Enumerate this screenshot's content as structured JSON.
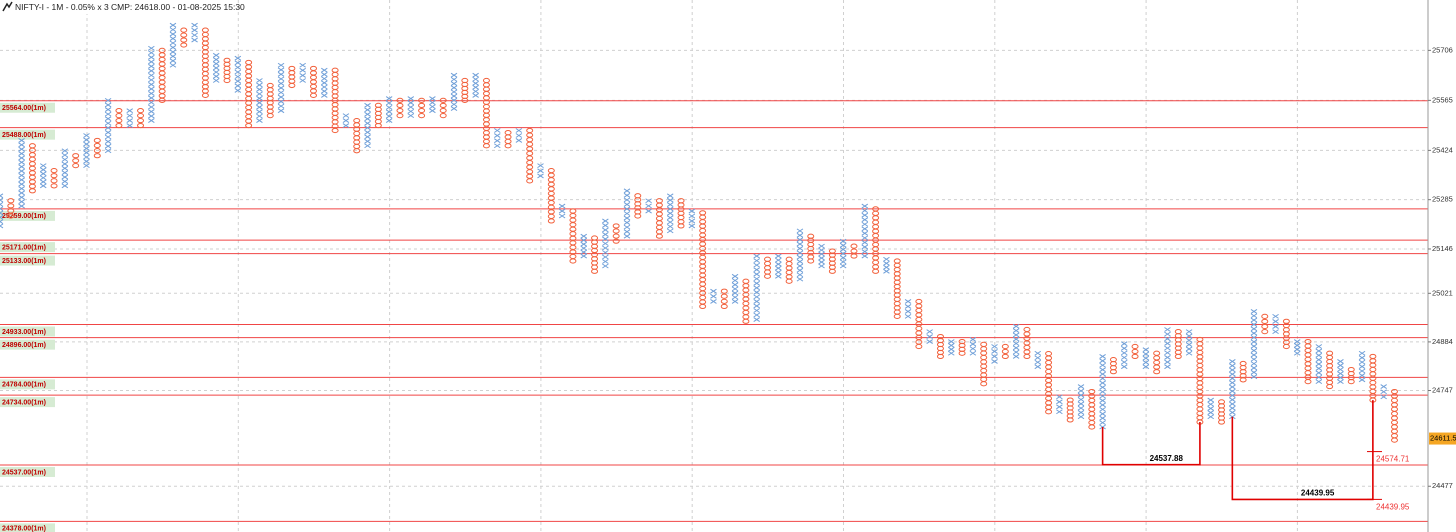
{
  "chart_data": {
    "type": "pnf",
    "title": "NIFTY-I - 1M - 0.05% x 3 CMP: 24618.00 - 01-08-2025 15:30",
    "ylim": [
      24348,
      25848
    ],
    "yticks": [
      25706,
      25565,
      25424,
      25285,
      25146,
      25021,
      24884,
      24747,
      24477
    ],
    "current_price": 24611.5,
    "x_color": "#6f9fd8",
    "o_color": "#f2613c",
    "level_color": "#f04545",
    "levels": [
      {
        "value": 25564,
        "label": "25564.00(1m)"
      },
      {
        "value": 25488,
        "label": "25488.00(1m)"
      },
      {
        "value": 25259,
        "label": "25259.00(1m)"
      },
      {
        "value": 25171,
        "label": "25171.00(1m)"
      },
      {
        "value": 25133,
        "label": "25133.00(1m)"
      },
      {
        "value": 24933,
        "label": "24933.00(1m)"
      },
      {
        "value": 24896,
        "label": "24896.00(1m)"
      },
      {
        "value": 24784,
        "label": "24784.00(1m)"
      },
      {
        "value": 24734,
        "label": "24734.00(1m)"
      },
      {
        "value": 24537,
        "label": "24537.00(1m)"
      },
      {
        "value": 24378,
        "label": "24378.00(1m)"
      }
    ],
    "brackets": [
      24537.88,
      24439.95
    ],
    "side_labels": [
      24574.71,
      24439.95
    ],
    "columns": [
      {
        "box": "X",
        "high": 25296,
        "low": 25211
      },
      {
        "box": "O",
        "high": 25282,
        "low": 25239
      },
      {
        "box": "X",
        "high": 25452,
        "low": 25267
      },
      {
        "box": "O",
        "high": 25437,
        "low": 25310
      },
      {
        "box": "X",
        "high": 25381,
        "low": 25324
      },
      {
        "box": "O",
        "high": 25367,
        "low": 25324
      },
      {
        "box": "X",
        "high": 25423,
        "low": 25324
      },
      {
        "box": "O",
        "high": 25409,
        "low": 25381
      },
      {
        "box": "X",
        "high": 25466,
        "low": 25381
      },
      {
        "box": "O",
        "high": 25452,
        "low": 25409
      },
      {
        "box": "X",
        "high": 25565,
        "low": 25423
      },
      {
        "box": "O",
        "high": 25536,
        "low": 25494
      },
      {
        "box": "X",
        "high": 25536,
        "low": 25494
      },
      {
        "box": "O",
        "high": 25536,
        "low": 25494
      },
      {
        "box": "X",
        "high": 25712,
        "low": 25508
      },
      {
        "box": "O",
        "high": 25706,
        "low": 25565
      },
      {
        "box": "X",
        "high": 25777,
        "low": 25664
      },
      {
        "box": "O",
        "high": 25763,
        "low": 25721
      },
      {
        "box": "X",
        "high": 25777,
        "low": 25735
      },
      {
        "box": "O",
        "high": 25763,
        "low": 25579
      },
      {
        "box": "X",
        "high": 25692,
        "low": 25621
      },
      {
        "box": "O",
        "high": 25678,
        "low": 25621
      },
      {
        "box": "X",
        "high": 25684,
        "low": 25593
      },
      {
        "box": "O",
        "high": 25672,
        "low": 25494
      },
      {
        "box": "X",
        "high": 25621,
        "low": 25508
      },
      {
        "box": "O",
        "high": 25607,
        "low": 25522
      },
      {
        "box": "X",
        "high": 25664,
        "low": 25536
      },
      {
        "box": "O",
        "high": 25655,
        "low": 25607
      },
      {
        "box": "X",
        "high": 25664,
        "low": 25621
      },
      {
        "box": "O",
        "high": 25655,
        "low": 25579
      },
      {
        "box": "X",
        "high": 25650,
        "low": 25579
      },
      {
        "box": "O",
        "high": 25650,
        "low": 25480
      },
      {
        "box": "X",
        "high": 25522,
        "low": 25494
      },
      {
        "box": "O",
        "high": 25508,
        "low": 25423
      },
      {
        "box": "X",
        "high": 25551,
        "low": 25437
      },
      {
        "box": "O",
        "high": 25551,
        "low": 25494
      },
      {
        "box": "X",
        "high": 25570,
        "low": 25508
      },
      {
        "box": "O",
        "high": 25565,
        "low": 25522
      },
      {
        "box": "X",
        "high": 25570,
        "low": 25522
      },
      {
        "box": "O",
        "high": 25565,
        "low": 25522
      },
      {
        "box": "X",
        "high": 25570,
        "low": 25536
      },
      {
        "box": "O",
        "high": 25565,
        "low": 25522
      },
      {
        "box": "X",
        "high": 25636,
        "low": 25542
      },
      {
        "box": "O",
        "high": 25621,
        "low": 25565
      },
      {
        "box": "X",
        "high": 25636,
        "low": 25579
      },
      {
        "box": "O",
        "high": 25621,
        "low": 25437
      },
      {
        "box": "X",
        "high": 25480,
        "low": 25437
      },
      {
        "box": "O",
        "high": 25474,
        "low": 25437
      },
      {
        "box": "X",
        "high": 25480,
        "low": 25452
      },
      {
        "box": "O",
        "high": 25480,
        "low": 25338
      },
      {
        "box": "X",
        "high": 25381,
        "low": 25352
      },
      {
        "box": "O",
        "high": 25367,
        "low": 25225
      },
      {
        "box": "X",
        "high": 25267,
        "low": 25239
      },
      {
        "box": "O",
        "high": 25253,
        "low": 25112
      },
      {
        "box": "X",
        "high": 25182,
        "low": 25126
      },
      {
        "box": "O",
        "high": 25177,
        "low": 25083
      },
      {
        "box": "X",
        "high": 25225,
        "low": 25098
      },
      {
        "box": "O",
        "high": 25211,
        "low": 25168
      },
      {
        "box": "X",
        "high": 25310,
        "low": 25182
      },
      {
        "box": "O",
        "high": 25296,
        "low": 25239
      },
      {
        "box": "X",
        "high": 25282,
        "low": 25253
      },
      {
        "box": "O",
        "high": 25282,
        "low": 25182
      },
      {
        "box": "X",
        "high": 25296,
        "low": 25197
      },
      {
        "box": "O",
        "high": 25282,
        "low": 25211
      },
      {
        "box": "X",
        "high": 25253,
        "low": 25211
      },
      {
        "box": "O",
        "high": 25248,
        "low": 24984
      },
      {
        "box": "X",
        "high": 25027,
        "low": 24998
      },
      {
        "box": "O",
        "high": 25027,
        "low": 24984
      },
      {
        "box": "X",
        "high": 25069,
        "low": 24998
      },
      {
        "box": "O",
        "high": 25055,
        "low": 24942
      },
      {
        "box": "X",
        "high": 25126,
        "low": 24947
      },
      {
        "box": "O",
        "high": 25117,
        "low": 25069
      },
      {
        "box": "X",
        "high": 25126,
        "low": 25069
      },
      {
        "box": "O",
        "high": 25117,
        "low": 25055
      },
      {
        "box": "X",
        "high": 25197,
        "low": 25061
      },
      {
        "box": "O",
        "high": 25182,
        "low": 25112
      },
      {
        "box": "X",
        "high": 25154,
        "low": 25098
      },
      {
        "box": "O",
        "high": 25140,
        "low": 25083
      },
      {
        "box": "X",
        "high": 25168,
        "low": 25098
      },
      {
        "box": "O",
        "high": 25154,
        "low": 25126
      },
      {
        "box": "X",
        "high": 25267,
        "low": 25126
      },
      {
        "box": "O",
        "high": 25259,
        "low": 25083
      },
      {
        "box": "X",
        "high": 25117,
        "low": 25083
      },
      {
        "box": "O",
        "high": 25112,
        "low": 24956
      },
      {
        "box": "X",
        "high": 24998,
        "low": 24956
      },
      {
        "box": "O",
        "high": 24998,
        "low": 24871
      },
      {
        "box": "X",
        "high": 24913,
        "low": 24885
      },
      {
        "box": "O",
        "high": 24899,
        "low": 24843
      },
      {
        "box": "X",
        "high": 24885,
        "low": 24852
      },
      {
        "box": "O",
        "high": 24885,
        "low": 24852
      },
      {
        "box": "X",
        "high": 24891,
        "low": 24852
      },
      {
        "box": "O",
        "high": 24877,
        "low": 24766
      },
      {
        "box": "X",
        "high": 24871,
        "low": 24829
      },
      {
        "box": "O",
        "high": 24871,
        "low": 24843
      },
      {
        "box": "X",
        "high": 24928,
        "low": 24843
      },
      {
        "box": "O",
        "high": 24919,
        "low": 24843
      },
      {
        "box": "X",
        "high": 24852,
        "low": 24814
      },
      {
        "box": "O",
        "high": 24851,
        "low": 24687
      },
      {
        "box": "X",
        "high": 24729,
        "low": 24687
      },
      {
        "box": "O",
        "high": 24720,
        "low": 24664
      },
      {
        "box": "X",
        "high": 24758,
        "low": 24673
      },
      {
        "box": "O",
        "high": 24744,
        "low": 24644
      },
      {
        "box": "X",
        "high": 24843,
        "low": 24644
      },
      {
        "box": "O",
        "high": 24834,
        "low": 24800
      },
      {
        "box": "X",
        "high": 24879,
        "low": 24814
      },
      {
        "box": "O",
        "high": 24871,
        "low": 24843
      },
      {
        "box": "X",
        "high": 24862,
        "low": 24814
      },
      {
        "box": "O",
        "high": 24852,
        "low": 24800
      },
      {
        "box": "X",
        "high": 24919,
        "low": 24814
      },
      {
        "box": "O",
        "high": 24913,
        "low": 24843
      },
      {
        "box": "X",
        "high": 24913,
        "low": 24852
      },
      {
        "box": "O",
        "high": 24891,
        "low": 24658
      },
      {
        "box": "X",
        "high": 24720,
        "low": 24673
      },
      {
        "box": "O",
        "high": 24715,
        "low": 24658
      },
      {
        "box": "X",
        "high": 24829,
        "low": 24673
      },
      {
        "box": "O",
        "high": 24823,
        "low": 24777
      },
      {
        "box": "X",
        "high": 24970,
        "low": 24786
      },
      {
        "box": "O",
        "high": 24956,
        "low": 24913
      },
      {
        "box": "X",
        "high": 24956,
        "low": 24913
      },
      {
        "box": "O",
        "high": 24942,
        "low": 24871
      },
      {
        "box": "X",
        "high": 24885,
        "low": 24852
      },
      {
        "box": "O",
        "high": 24885,
        "low": 24772
      },
      {
        "box": "X",
        "high": 24871,
        "low": 24772
      },
      {
        "box": "O",
        "high": 24852,
        "low": 24758
      },
      {
        "box": "X",
        "high": 24829,
        "low": 24772
      },
      {
        "box": "O",
        "high": 24806,
        "low": 24772
      },
      {
        "box": "X",
        "high": 24852,
        "low": 24777
      },
      {
        "box": "O",
        "high": 24843,
        "low": 24720
      },
      {
        "box": "X",
        "high": 24758,
        "low": 24729
      },
      {
        "box": "O",
        "high": 24744,
        "low": 24607
      }
    ]
  }
}
